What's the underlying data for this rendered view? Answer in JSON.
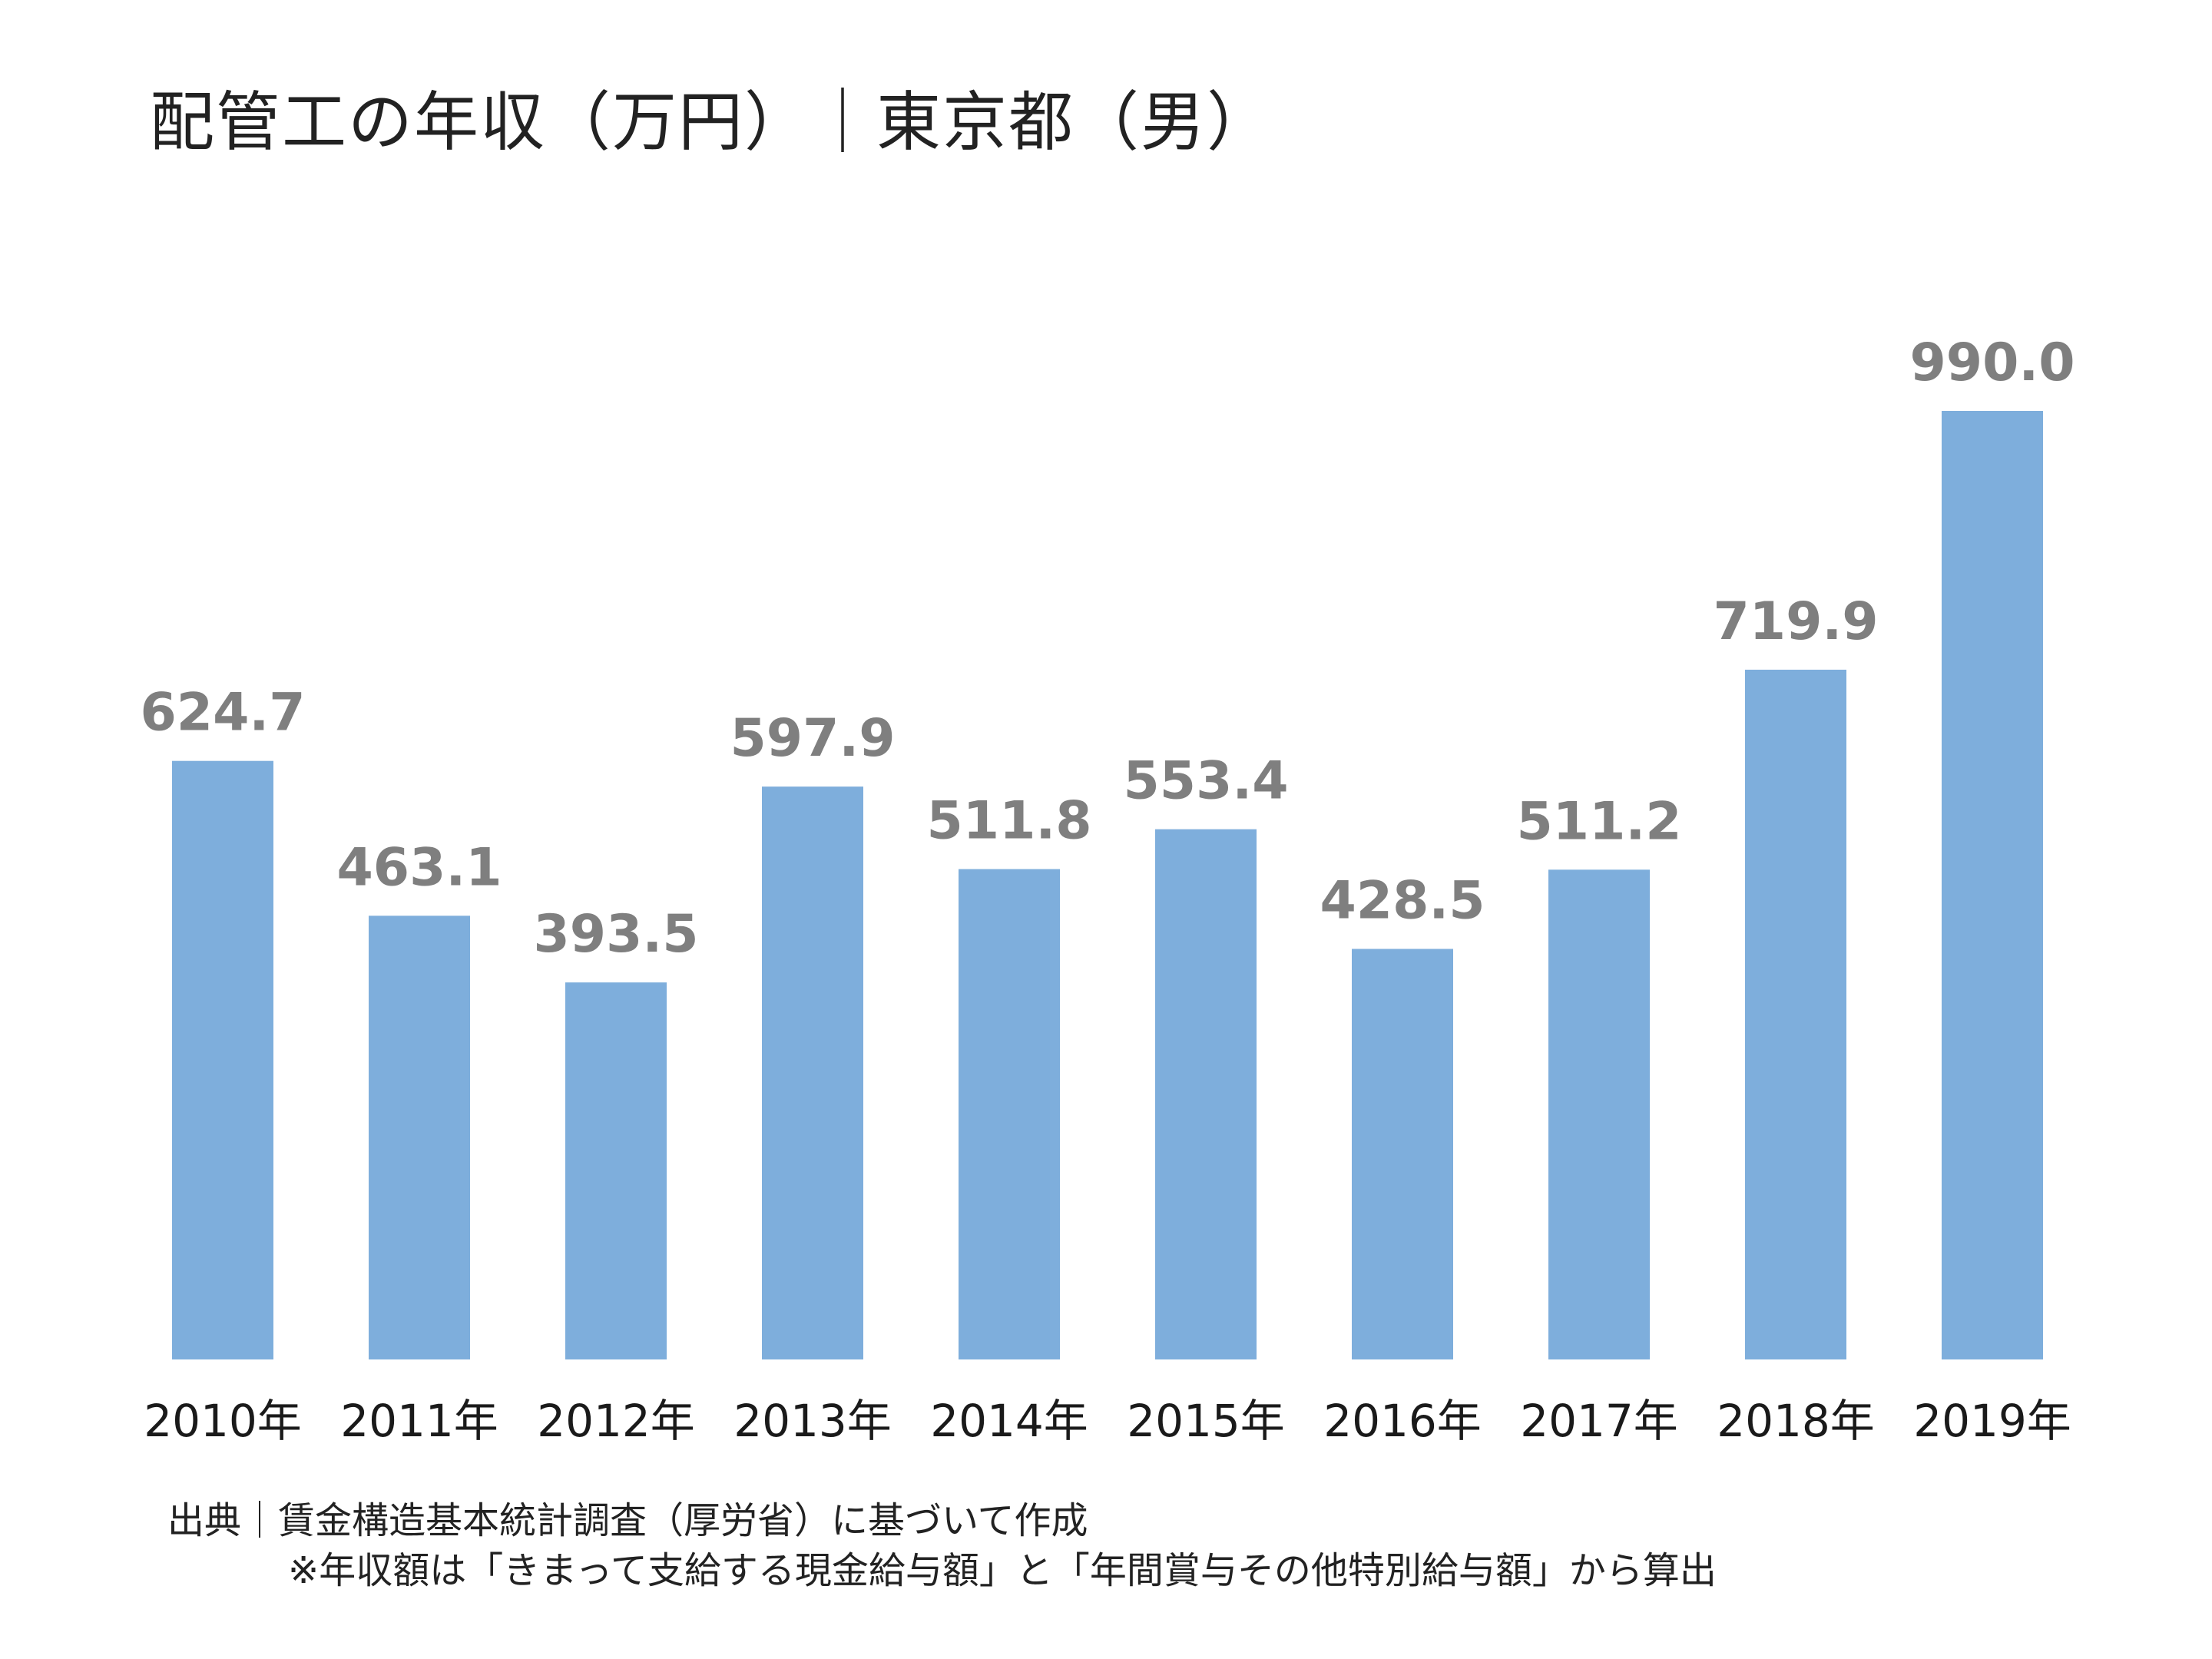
{
  "chart_data": {
    "type": "bar",
    "title": "配管工の年収（万円）｜東京都（男）",
    "categories": [
      "2010年",
      "2011年",
      "2012年",
      "2013年",
      "2014年",
      "2015年",
      "2016年",
      "2017年",
      "2018年",
      "2019年"
    ],
    "values": [
      624.7,
      463.1,
      393.5,
      597.9,
      511.8,
      553.4,
      428.5,
      511.2,
      719.9,
      990.0
    ],
    "value_labels": [
      "624.7",
      "463.1",
      "393.5",
      "597.9",
      "511.8",
      "553.4",
      "428.5",
      "511.2",
      "719.9",
      "990.0"
    ],
    "xlabel": "",
    "ylabel": "",
    "ylim": [
      0,
      990
    ],
    "grid": false,
    "legend": "none",
    "colors": {
      "bar": "#7eaedc",
      "value_label": "#7f7f7f",
      "tick_label": "#1a1a1a"
    }
  },
  "source": {
    "line1": "出典｜賃金構造基本統計調査（厚労省）に基づいて作成",
    "line2": "※年収額は「きまって支給する現金給与額」と「年間賞与その他特別給与額」から算出"
  }
}
